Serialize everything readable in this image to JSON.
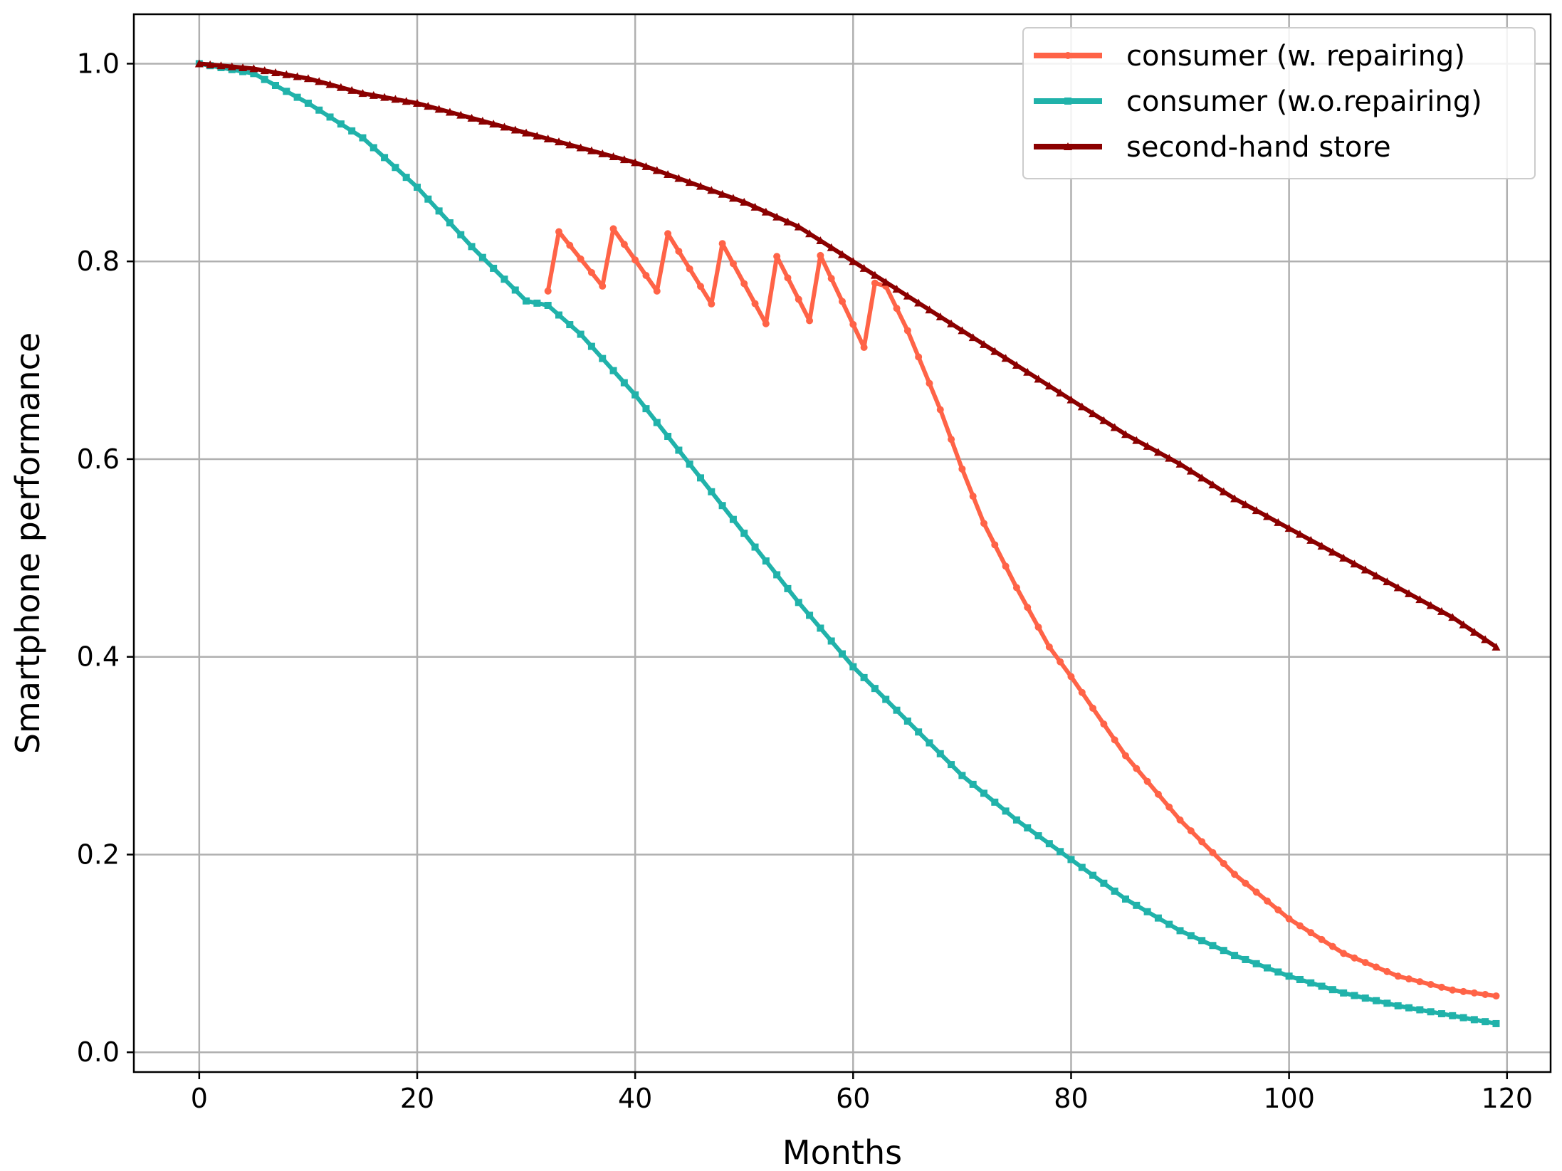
{
  "chart_data": {
    "type": "line",
    "xlabel": "Months",
    "ylabel": "Smartphone performance",
    "xlim": [
      -6,
      124
    ],
    "ylim": [
      -0.02,
      1.05
    ],
    "xticks": [
      0,
      20,
      40,
      60,
      80,
      100,
      120
    ],
    "xtick_labels": [
      "0",
      "20",
      "40",
      "60",
      "80",
      "100",
      "120"
    ],
    "yticks": [
      0.0,
      0.2,
      0.4,
      0.6,
      0.8,
      1.0
    ],
    "ytick_labels": [
      "0.0",
      "0.2",
      "0.4",
      "0.6",
      "0.8",
      "1.0"
    ],
    "grid": true,
    "legend_position": "top-right",
    "series": [
      {
        "name": "consumer (w. repairing)",
        "color": "#ff6347",
        "marker": "circle",
        "points": [
          [
            32,
            0.77
          ],
          [
            33,
            0.83
          ],
          [
            37,
            0.775
          ],
          [
            38,
            0.833
          ],
          [
            42,
            0.77
          ],
          [
            43,
            0.828
          ],
          [
            47,
            0.757
          ],
          [
            48,
            0.818
          ],
          [
            52,
            0.737
          ],
          [
            53,
            0.805
          ],
          [
            56,
            0.74
          ],
          [
            57,
            0.806
          ],
          [
            61,
            0.713
          ],
          [
            62,
            0.778
          ],
          [
            63,
            0.775
          ],
          [
            65,
            0.73
          ],
          [
            68,
            0.65
          ],
          [
            70,
            0.59
          ],
          [
            72,
            0.535
          ],
          [
            75,
            0.47
          ],
          [
            78,
            0.41
          ],
          [
            80,
            0.38
          ],
          [
            85,
            0.3
          ],
          [
            90,
            0.235
          ],
          [
            95,
            0.18
          ],
          [
            100,
            0.135
          ],
          [
            105,
            0.1
          ],
          [
            110,
            0.077
          ],
          [
            115,
            0.063
          ],
          [
            119,
            0.057
          ]
        ]
      },
      {
        "name": "consumer (w.o.repairing)",
        "color": "#20b2aa",
        "marker": "square",
        "points": [
          [
            0,
            1.0
          ],
          [
            5,
            0.99
          ],
          [
            10,
            0.96
          ],
          [
            15,
            0.925
          ],
          [
            20,
            0.875
          ],
          [
            25,
            0.815
          ],
          [
            30,
            0.76
          ],
          [
            32,
            0.7555
          ],
          [
            35,
            0.7263
          ],
          [
            40,
            0.665
          ],
          [
            45,
            0.595
          ],
          [
            50,
            0.525
          ],
          [
            55,
            0.455
          ],
          [
            60,
            0.39
          ],
          [
            65,
            0.335
          ],
          [
            70,
            0.28
          ],
          [
            75,
            0.235
          ],
          [
            80,
            0.195
          ],
          [
            85,
            0.155
          ],
          [
            90,
            0.123
          ],
          [
            95,
            0.098
          ],
          [
            100,
            0.077
          ],
          [
            105,
            0.06
          ],
          [
            110,
            0.047
          ],
          [
            115,
            0.037
          ],
          [
            119,
            0.029
          ]
        ]
      },
      {
        "name": "second-hand store",
        "color": "#8b0000",
        "marker": "triangle",
        "points": [
          [
            0,
            1.0
          ],
          [
            5,
            0.995
          ],
          [
            10,
            0.985
          ],
          [
            15,
            0.97
          ],
          [
            20,
            0.96
          ],
          [
            25,
            0.945
          ],
          [
            30,
            0.93
          ],
          [
            35,
            0.915
          ],
          [
            40,
            0.9
          ],
          [
            45,
            0.88
          ],
          [
            50,
            0.86
          ],
          [
            55,
            0.835
          ],
          [
            60,
            0.8
          ],
          [
            65,
            0.765
          ],
          [
            70,
            0.73
          ],
          [
            75,
            0.695
          ],
          [
            80,
            0.66
          ],
          [
            85,
            0.625
          ],
          [
            90,
            0.595
          ],
          [
            95,
            0.56
          ],
          [
            100,
            0.53
          ],
          [
            105,
            0.5
          ],
          [
            110,
            0.47
          ],
          [
            115,
            0.44
          ],
          [
            119,
            0.41
          ]
        ]
      }
    ]
  }
}
